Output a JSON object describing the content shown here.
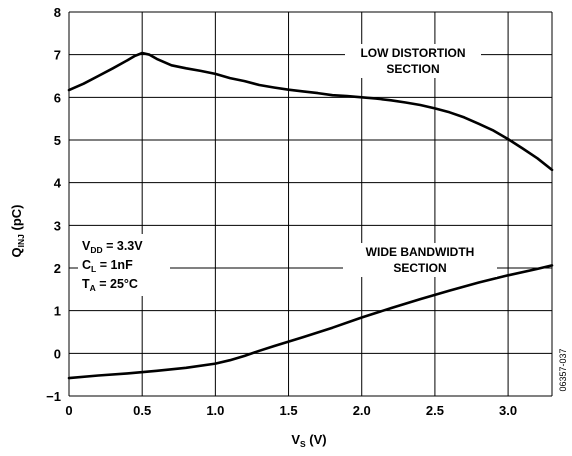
{
  "chart_data": {
    "type": "line",
    "xlabel": {
      "main": "V",
      "sub": "S",
      "unit": " (V)"
    },
    "ylabel": {
      "main": "Q",
      "sub": "INJ",
      "unit": " (pC)"
    },
    "xlim": [
      0,
      3.3
    ],
    "ylim": [
      -1,
      8
    ],
    "xticks": [
      0,
      0.5,
      1.0,
      1.5,
      2.0,
      2.5,
      3.0
    ],
    "xtick_labels": [
      "0",
      "0.5",
      "1.0",
      "1.5",
      "2.0",
      "2.5",
      "3.0"
    ],
    "yticks": [
      -1,
      0,
      1,
      2,
      3,
      4,
      5,
      6,
      7,
      8
    ],
    "ytick_labels": [
      "−1",
      "0",
      "1",
      "2",
      "3",
      "4",
      "5",
      "6",
      "7",
      "8"
    ],
    "grid": true,
    "series": [
      {
        "label_lines": [
          "LOW DISTORTION",
          "SECTION"
        ],
        "x": [
          0,
          0.1,
          0.2,
          0.3,
          0.4,
          0.45,
          0.5,
          0.55,
          0.6,
          0.7,
          0.8,
          0.9,
          1.0,
          1.1,
          1.2,
          1.3,
          1.4,
          1.5,
          1.6,
          1.7,
          1.8,
          1.9,
          2.0,
          2.1,
          2.2,
          2.3,
          2.4,
          2.5,
          2.6,
          2.7,
          2.8,
          2.9,
          3.0,
          3.1,
          3.2,
          3.3
        ],
        "y": [
          6.17,
          6.32,
          6.5,
          6.68,
          6.87,
          6.97,
          7.04,
          7.0,
          6.9,
          6.75,
          6.68,
          6.62,
          6.55,
          6.45,
          6.38,
          6.29,
          6.23,
          6.18,
          6.14,
          6.1,
          6.05,
          6.03,
          6.0,
          5.97,
          5.93,
          5.88,
          5.82,
          5.74,
          5.65,
          5.53,
          5.38,
          5.22,
          5.02,
          4.8,
          4.57,
          4.3
        ]
      },
      {
        "label_lines": [
          "WIDE BANDWIDTH",
          "SECTION"
        ],
        "x": [
          0,
          0.2,
          0.4,
          0.6,
          0.8,
          1.0,
          1.1,
          1.2,
          1.3,
          1.4,
          1.6,
          1.8,
          2.0,
          2.2,
          2.4,
          2.6,
          2.8,
          3.0,
          3.2,
          3.3
        ],
        "y": [
          -0.58,
          -0.52,
          -0.47,
          -0.41,
          -0.34,
          -0.24,
          -0.16,
          -0.06,
          0.06,
          0.17,
          0.38,
          0.6,
          0.84,
          1.06,
          1.27,
          1.47,
          1.66,
          1.83,
          1.98,
          2.06
        ]
      }
    ],
    "conditions": [
      {
        "main": "V",
        "sub": "DD",
        "rest": " = 3.3V"
      },
      {
        "main": "C",
        "sub": "L",
        "rest": " = 1nF"
      },
      {
        "main": "T",
        "sub": "A",
        "rest": " = 25°C"
      }
    ],
    "figure_code": "06357-037"
  }
}
